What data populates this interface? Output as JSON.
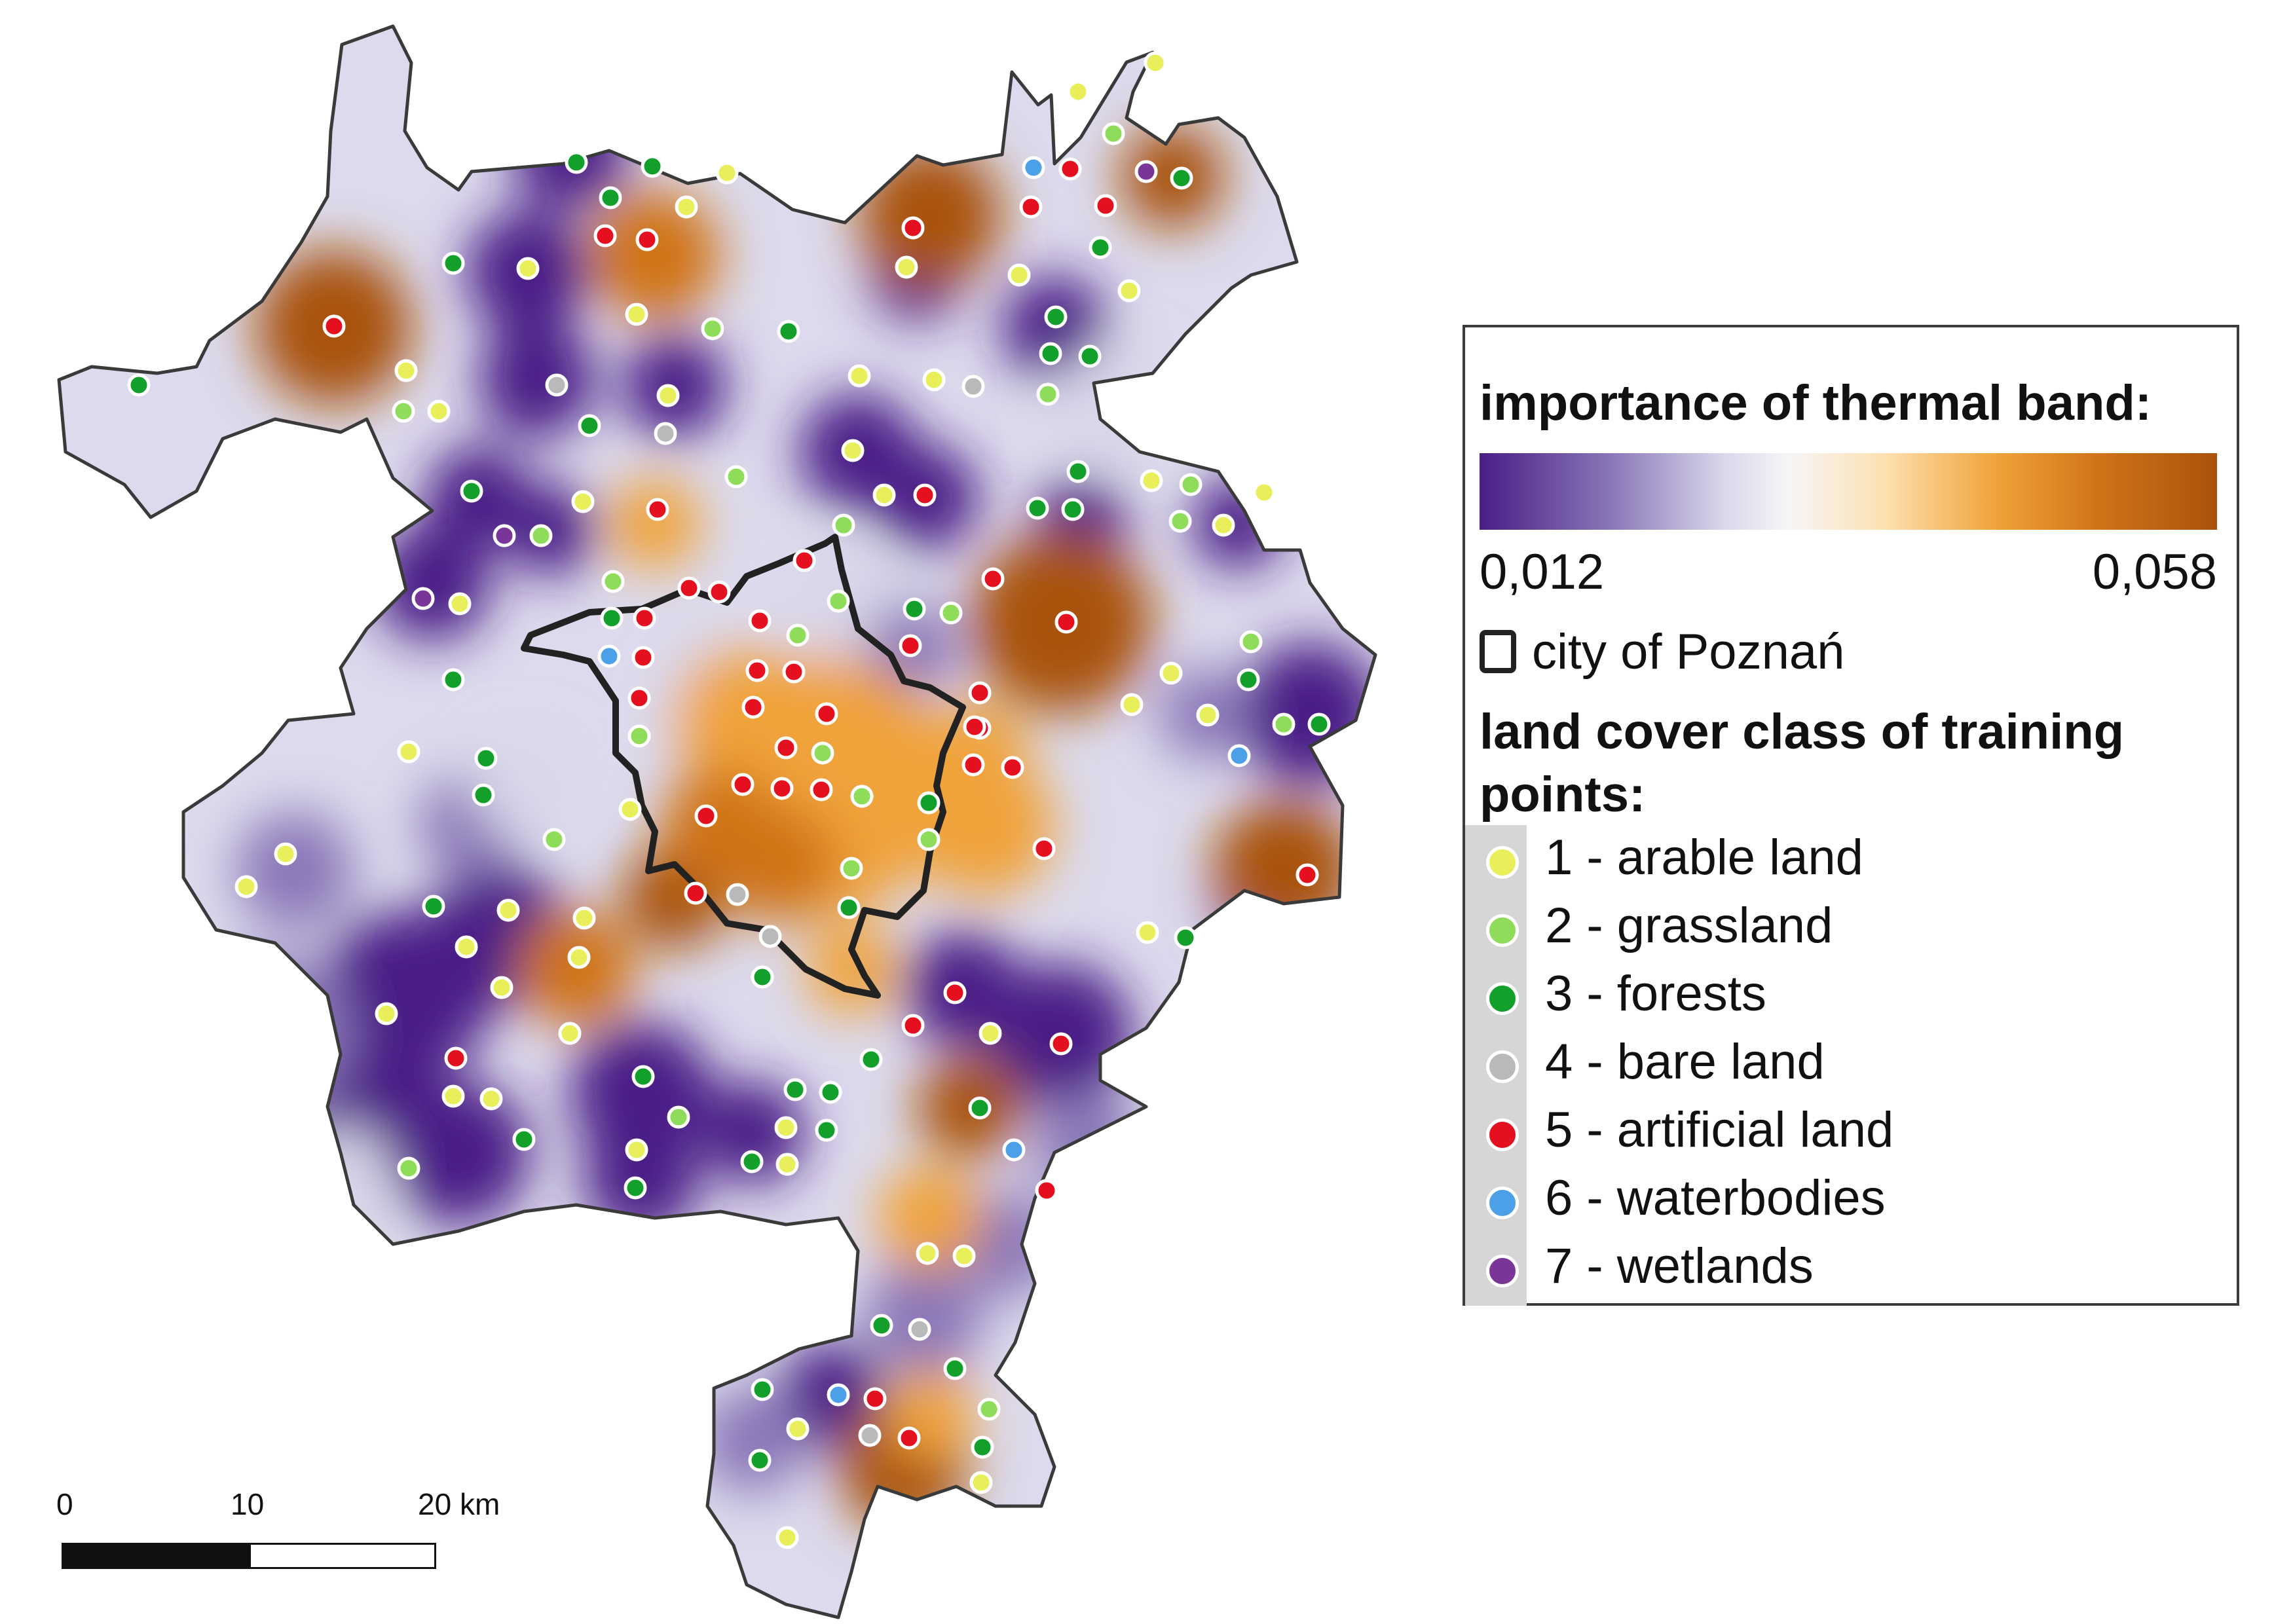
{
  "legend": {
    "title": "importance of thermal band:",
    "ramp_min": "0,012",
    "ramp_max": "0,058",
    "ramp_colors": [
      "#4a1f86",
      "#8a77b8",
      "#d9d7ea",
      "#f6f6f8",
      "#fde0b0",
      "#f0a33a",
      "#d07318",
      "#a9520b"
    ],
    "city_label": "city of Poznań",
    "points_title": "land cover class of training points:",
    "classes": [
      {
        "id": 1,
        "label": "1 - arable land",
        "color": "#e8ef5a"
      },
      {
        "id": 2,
        "label": "2 - grassland",
        "color": "#8fdc5a"
      },
      {
        "id": 3,
        "label": "3 - forests",
        "color": "#12a02a"
      },
      {
        "id": 4,
        "label": "4 - bare land",
        "color": "#b9b9b9"
      },
      {
        "id": 5,
        "label": "5 - artificial land",
        "color": "#e4101f"
      },
      {
        "id": 6,
        "label": "6 - waterbodies",
        "color": "#4ba0e8"
      },
      {
        "id": 7,
        "label": "7 - wetlands",
        "color": "#7a3598"
      }
    ]
  },
  "scalebar": {
    "labels": [
      "0",
      "10",
      "20 km"
    ]
  },
  "map": {
    "boundary_color": "#3a3a3a",
    "city_outline_color": "#222222"
  }
}
